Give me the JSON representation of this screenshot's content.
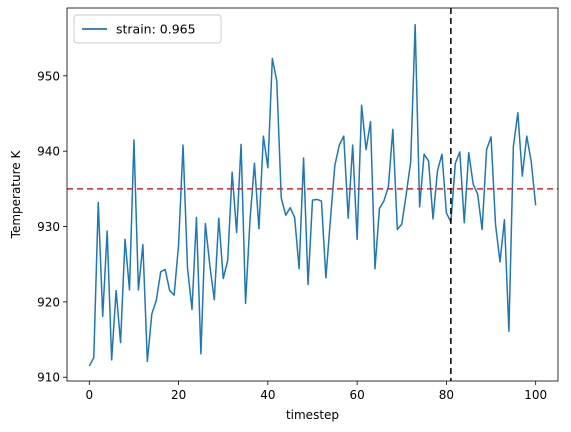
{
  "chart_data": {
    "type": "line",
    "title": "",
    "xlabel": "timestep",
    "ylabel": "Temperature K",
    "xlim": [
      -5,
      105
    ],
    "ylim": [
      909.5,
      959
    ],
    "xticks": [
      0,
      20,
      40,
      60,
      80,
      100
    ],
    "yticks": [
      910,
      920,
      930,
      940,
      950
    ],
    "grid": false,
    "legend_position": "top-left",
    "series": [
      {
        "name": "strain: 0.965",
        "color": "#1f77b4",
        "x": [
          0,
          1,
          2,
          3,
          4,
          5,
          6,
          7,
          8,
          9,
          10,
          11,
          12,
          13,
          14,
          15,
          16,
          17,
          18,
          19,
          20,
          21,
          22,
          23,
          24,
          25,
          26,
          27,
          28,
          29,
          30,
          31,
          32,
          33,
          34,
          35,
          36,
          37,
          38,
          39,
          40,
          41,
          42,
          43,
          44,
          45,
          46,
          47,
          48,
          49,
          50,
          51,
          52,
          53,
          54,
          55,
          56,
          57,
          58,
          59,
          60,
          61,
          62,
          63,
          64,
          65,
          66,
          67,
          68,
          69,
          70,
          71,
          72,
          73,
          74,
          75,
          76,
          77,
          78,
          79,
          80,
          81,
          82,
          83,
          84,
          85,
          86,
          87,
          88,
          89,
          90,
          91,
          92,
          93,
          94,
          95,
          96,
          97,
          98,
          99,
          100
        ],
        "y": [
          911.5,
          912.6,
          933.2,
          918.1,
          929.4,
          912.3,
          921.5,
          914.6,
          928.3,
          921.6,
          941.5,
          921.6,
          927.6,
          912.1,
          918.4,
          920.2,
          924.0,
          924.3,
          921.5,
          920.9,
          927.6,
          940.8,
          924.5,
          919.0,
          931.2,
          913.1,
          930.4,
          924.8,
          920.3,
          931.1,
          923.1,
          925.5,
          937.2,
          929.2,
          940.9,
          919.8,
          930.9,
          938.4,
          929.7,
          942.0,
          937.8,
          952.3,
          949.3,
          933.8,
          931.5,
          932.5,
          931.2,
          924.4,
          939.1,
          922.3,
          933.5,
          933.6,
          933.4,
          923.2,
          930.8,
          938.1,
          940.8,
          942.0,
          931.1,
          940.8,
          928.3,
          946.1,
          940.2,
          943.9,
          924.4,
          932.4,
          933.4,
          935.3,
          942.9,
          929.6,
          930.3,
          934.3,
          938.6,
          956.8,
          932.6,
          939.6,
          938.7,
          931.0,
          937.4,
          939.6,
          931.8,
          930.6,
          938.4,
          939.9,
          930.5,
          939.8,
          935.6,
          934.3,
          929.6,
          940.2,
          941.9,
          930.3,
          925.3,
          930.9,
          916.1,
          940.6,
          945.1,
          936.7,
          942.0,
          938.6,
          932.8
        ]
      }
    ],
    "reference_lines": [
      {
        "orientation": "horizontal",
        "value": 935,
        "color": "#d62728",
        "style": "dashed"
      },
      {
        "orientation": "vertical",
        "value": 81,
        "color": "#000000",
        "style": "dashed"
      }
    ]
  }
}
